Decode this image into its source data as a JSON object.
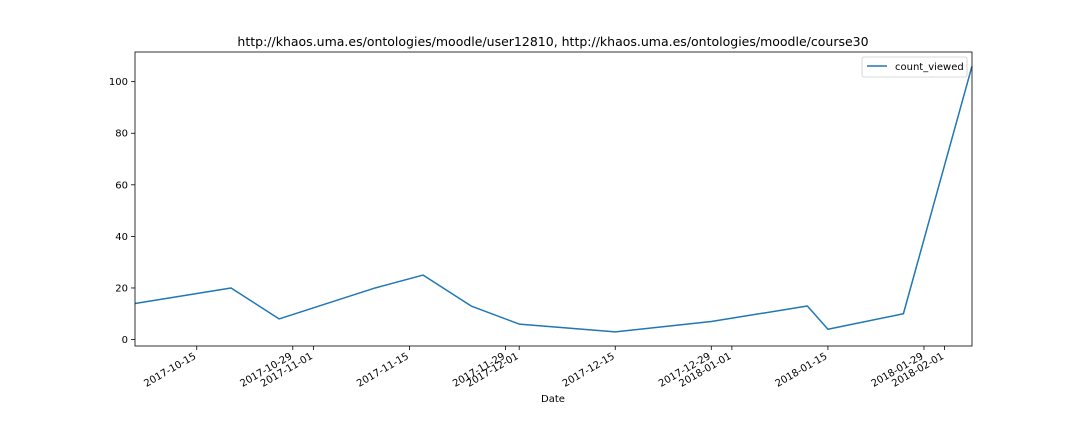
{
  "chart_data": {
    "type": "line",
    "title": "http://khaos.uma.es/ontologies/moodle/user12810, http://khaos.uma.es/ontologies/moodle/course30",
    "xlabel": "Date",
    "ylabel": "",
    "x_type": "date",
    "xlim": [
      "2017-10-06",
      "2018-02-05"
    ],
    "ylim": [
      -2.5,
      111.5
    ],
    "y_ticks": [
      0,
      20,
      40,
      60,
      80,
      100
    ],
    "x_ticks": [
      "2017-10-15",
      "2017-10-29",
      "2017-11-01",
      "2017-11-15",
      "2017-11-29",
      "2017-12-01",
      "2017-12-15",
      "2017-12-29",
      "2018-01-01",
      "2018-01-15",
      "2018-01-29",
      "2018-02-01"
    ],
    "legend_position": "top-right",
    "grid": false,
    "series": [
      {
        "name": "count_viewed",
        "color": "#1f77b4",
        "x": [
          "2017-10-06",
          "2017-10-20",
          "2017-10-27",
          "2017-11-10",
          "2017-11-17",
          "2017-11-24",
          "2017-12-01",
          "2017-12-15",
          "2017-12-29",
          "2018-01-12",
          "2018-01-15",
          "2018-01-26",
          "2018-02-05"
        ],
        "y": [
          14,
          20,
          8,
          20,
          25,
          13,
          6,
          3,
          7,
          13,
          4,
          10,
          106
        ]
      }
    ]
  }
}
